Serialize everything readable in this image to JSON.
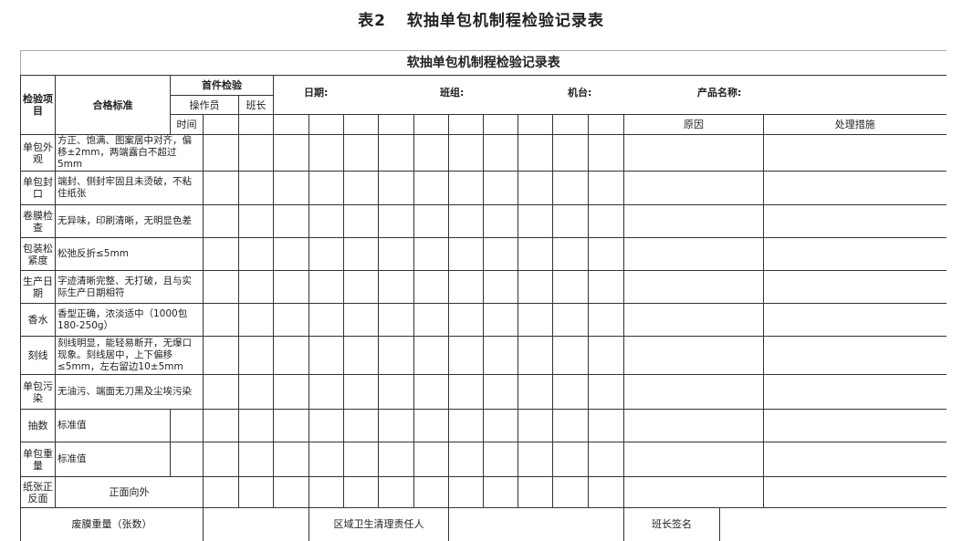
{
  "caption": {
    "label": "表2",
    "title": "软抽单包机制程检验记录表"
  },
  "table": {
    "title": "软抽单包机制程检验记录表",
    "header": {
      "item": "检验项目",
      "standard": "合格标准",
      "first_check": "首件检验",
      "operator": "操作员",
      "leader": "班长",
      "time": "时间",
      "date": "日期:",
      "team": "班组:",
      "machine": "机台:",
      "product": "产品名称:",
      "reason": "原因",
      "measure": "处理措施"
    },
    "rows": [
      {
        "item": "单包外观",
        "standard": "方正、饱满、图案居中对齐，偏移±2mm，两端露白不超过5mm",
        "type": "full"
      },
      {
        "item": "单包封口",
        "standard": "端封、侧封牢固且未烫破，不粘住纸张",
        "type": "full"
      },
      {
        "item": "卷膜检查",
        "standard": "无异味，印刷清晰，无明显色差",
        "type": "full"
      },
      {
        "item": "包装松紧度",
        "standard": "松弛反折≤5mm",
        "type": "full"
      },
      {
        "item": "生产日期",
        "standard": "字迹清晰完整、无打破，且与实际生产日期相符",
        "type": "full"
      },
      {
        "item": "香水",
        "standard": "香型正确，浓淡适中（1000包180-250g）",
        "type": "full"
      },
      {
        "item": "刻线",
        "standard": "刻线明显，能轻易断开，无爆口现象。刻线居中，上下偏移≤5mm，左右留边10±5mm",
        "type": "full"
      },
      {
        "item": "单包污染",
        "standard": "无油污、端面无刀黑及尘埃污染",
        "type": "full"
      },
      {
        "item": "抽数",
        "standard": "标准值",
        "type": "split"
      },
      {
        "item": "单包重量",
        "standard": "标准值",
        "type": "split"
      },
      {
        "item": "纸张正反面",
        "standard": "正面向外",
        "type": "center"
      }
    ],
    "footer": {
      "waste_film": "废膜重量（张数）",
      "hygiene": "区域卫生清理责任人",
      "leader_sign": "班长签名"
    }
  }
}
